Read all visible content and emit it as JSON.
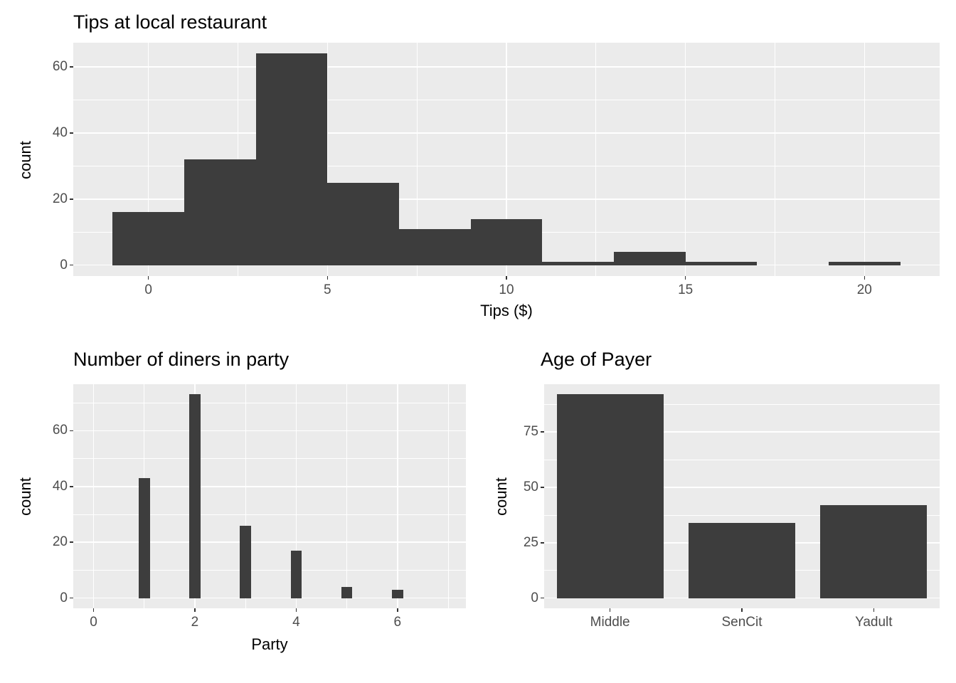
{
  "colors": {
    "bar_fill": "#3D3D3D",
    "panel_bg": "#EBEBEB",
    "grid_major": "#FFFFFF",
    "grid_minor": "#FFFFFF",
    "tick_text": "#4D4D4D",
    "title_text": "#000000",
    "tick_mark": "#333333"
  },
  "chart_data": [
    {
      "type": "histogram",
      "title": "Tips at local restaurant",
      "xlabel": "Tips ($)",
      "ylabel": "count",
      "bins": [
        {
          "x0": -1,
          "x1": 1,
          "count": 16
        },
        {
          "x0": 1,
          "x1": 3,
          "count": 32
        },
        {
          "x0": 3,
          "x1": 5,
          "count": 64
        },
        {
          "x0": 5,
          "x1": 7,
          "count": 25
        },
        {
          "x0": 7,
          "x1": 9,
          "count": 11
        },
        {
          "x0": 9,
          "x1": 11,
          "count": 14
        },
        {
          "x0": 11,
          "x1": 13,
          "count": 1
        },
        {
          "x0": 13,
          "x1": 15,
          "count": 4
        },
        {
          "x0": 15,
          "x1": 17,
          "count": 1
        },
        {
          "x0": 17,
          "x1": 19,
          "count": 0
        },
        {
          "x0": 19,
          "x1": 21,
          "count": 1
        }
      ],
      "x_ticks": [
        0,
        5,
        10,
        15,
        20
      ],
      "x_minor": [
        2.5,
        7.5,
        12.5,
        17.5
      ],
      "y_ticks": [
        0,
        20,
        40,
        60
      ],
      "y_minor": [
        10,
        30,
        50
      ],
      "xlim": [
        -2.1,
        22.1
      ],
      "ylim": [
        -3.3,
        67.3
      ],
      "grid": true,
      "legend": "none"
    },
    {
      "type": "histogram",
      "title": "Number of diners in party",
      "xlabel": "Party",
      "ylabel": "count",
      "bins": [
        {
          "x0": 0.89,
          "x1": 1.11,
          "count": 43
        },
        {
          "x0": 1.89,
          "x1": 2.11,
          "count": 73
        },
        {
          "x0": 2.89,
          "x1": 3.11,
          "count": 26
        },
        {
          "x0": 3.89,
          "x1": 4.11,
          "count": 17
        },
        {
          "x0": 4.89,
          "x1": 5.11,
          "count": 4
        },
        {
          "x0": 5.89,
          "x1": 6.11,
          "count": 3
        }
      ],
      "x_ticks": [
        0,
        2,
        4,
        6
      ],
      "x_minor": [
        1,
        3,
        5,
        7
      ],
      "y_ticks": [
        0,
        20,
        40,
        60
      ],
      "y_minor": [
        10,
        30,
        50,
        70
      ],
      "xlim": [
        -0.4,
        7.35
      ],
      "ylim": [
        -3.65,
        76.65
      ],
      "grid": true,
      "legend": "none"
    },
    {
      "type": "bar",
      "title": "Age of Payer",
      "xlabel": "",
      "ylabel": "count",
      "categories": [
        "Middle",
        "SenCit",
        "Yadult"
      ],
      "values": [
        92,
        34,
        42
      ],
      "bar_width": 0.81,
      "y_ticks": [
        0,
        25,
        50,
        75
      ],
      "y_minor": [
        12.5,
        37.5,
        62.5,
        87.5
      ],
      "ylim": [
        -4.6,
        96.6
      ],
      "grid": true,
      "legend": "none"
    }
  ]
}
